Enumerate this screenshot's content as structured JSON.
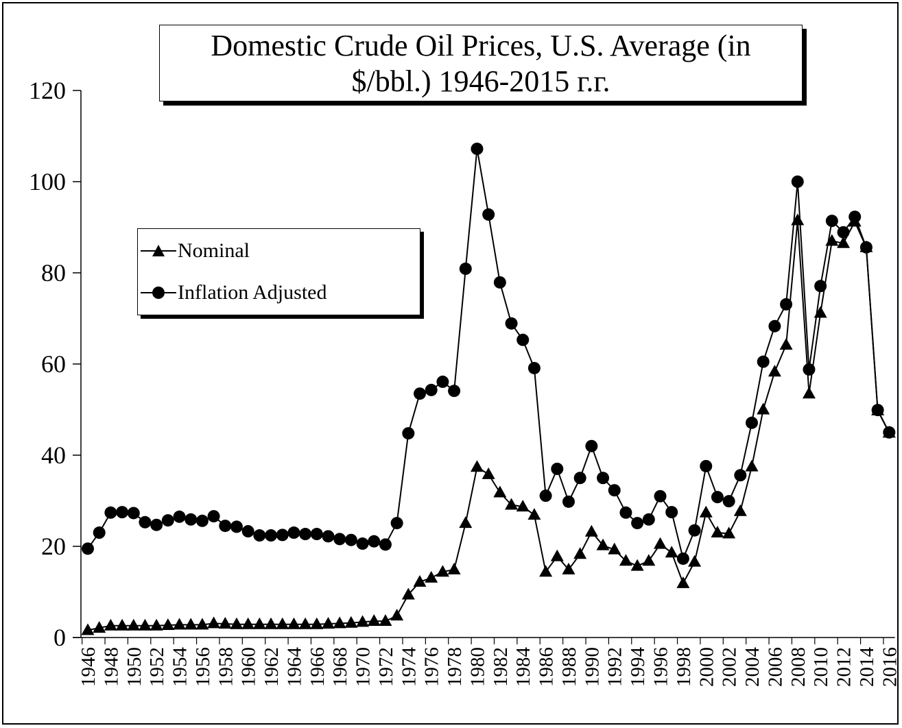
{
  "chart_data": {
    "type": "line",
    "title": "Domestic Crude Oil  Prices, U.S. Average (in $/bbl.) 1946-2015 г.г.",
    "title_lines": [
      "Domestic Crude Oil  Prices, U.S. Average (in",
      "$/bbl.) 1946-2015 г.г."
    ],
    "xlabel": "",
    "ylabel": "",
    "ylim": [
      0,
      120
    ],
    "yticks": [
      0,
      20,
      40,
      60,
      80,
      100,
      120
    ],
    "xlim": [
      1946,
      2016
    ],
    "xticks": [
      1946,
      1948,
      1950,
      1952,
      1954,
      1956,
      1958,
      1960,
      1962,
      1964,
      1966,
      1968,
      1970,
      1972,
      1974,
      1976,
      1978,
      1980,
      1982,
      1984,
      1986,
      1988,
      1990,
      1992,
      1994,
      1996,
      1998,
      2000,
      2002,
      2004,
      2006,
      2008,
      2010,
      2012,
      2014,
      2016
    ],
    "grid": false,
    "legend_position": "upper-left",
    "x": [
      1946,
      1947,
      1948,
      1949,
      1950,
      1951,
      1952,
      1953,
      1954,
      1955,
      1956,
      1957,
      1958,
      1959,
      1960,
      1961,
      1962,
      1963,
      1964,
      1965,
      1966,
      1967,
      1968,
      1969,
      1970,
      1971,
      1972,
      1973,
      1974,
      1975,
      1976,
      1977,
      1978,
      1979,
      1980,
      1981,
      1982,
      1983,
      1984,
      1985,
      1986,
      1987,
      1988,
      1989,
      1990,
      1991,
      1992,
      1993,
      1994,
      1995,
      1996,
      1997,
      1998,
      1999,
      2000,
      2001,
      2002,
      2003,
      2004,
      2005,
      2006,
      2007,
      2008,
      2009,
      2010,
      2011,
      2012,
      2013,
      2014,
      2015,
      2016
    ],
    "series": [
      {
        "name": "Nominal",
        "marker": "triangle",
        "values": [
          1.6,
          2.1,
          2.6,
          2.6,
          2.6,
          2.6,
          2.6,
          2.7,
          2.8,
          2.8,
          2.8,
          3.1,
          3.0,
          2.9,
          2.9,
          2.9,
          2.9,
          2.9,
          2.9,
          2.9,
          2.9,
          3.0,
          3.1,
          3.2,
          3.4,
          3.6,
          3.6,
          4.8,
          9.4,
          12.2,
          13.1,
          14.4,
          14.9,
          25.1,
          37.4,
          35.8,
          31.8,
          29.1,
          28.7,
          26.9,
          14.4,
          17.8,
          14.9,
          18.3,
          23.2,
          20.2,
          19.3,
          16.8,
          15.7,
          16.8,
          20.5,
          18.6,
          11.9,
          16.6,
          27.4,
          23.0,
          22.8,
          27.7,
          37.5,
          50.0,
          58.3,
          64.2,
          91.5,
          53.5,
          71.2,
          87.0,
          86.5,
          91.2,
          85.6,
          49.8,
          44.9
        ]
      },
      {
        "name": "Inflation Adjusted",
        "marker": "circle",
        "values": [
          19.5,
          23.0,
          27.4,
          27.5,
          27.3,
          25.3,
          24.7,
          25.7,
          26.5,
          25.9,
          25.6,
          26.6,
          24.5,
          24.3,
          23.3,
          22.4,
          22.4,
          22.5,
          23.0,
          22.7,
          22.7,
          22.2,
          21.6,
          21.4,
          20.6,
          21.1,
          20.4,
          25.1,
          44.8,
          53.5,
          54.3,
          56.1,
          54.1,
          80.9,
          107.2,
          92.8,
          77.9,
          68.9,
          65.3,
          59.1,
          31.1,
          37.0,
          29.8,
          35.0,
          42.0,
          35.0,
          32.3,
          27.4,
          25.1,
          25.9,
          31.0,
          27.5,
          17.3,
          23.5,
          37.6,
          30.8,
          29.9,
          35.6,
          47.1,
          60.5,
          68.3,
          73.1,
          100.0,
          58.8,
          77.1,
          91.4,
          88.9,
          92.3,
          85.6,
          49.9,
          45.0
        ]
      }
    ]
  },
  "colors": {
    "line": "#000000",
    "background": "#ffffff"
  }
}
